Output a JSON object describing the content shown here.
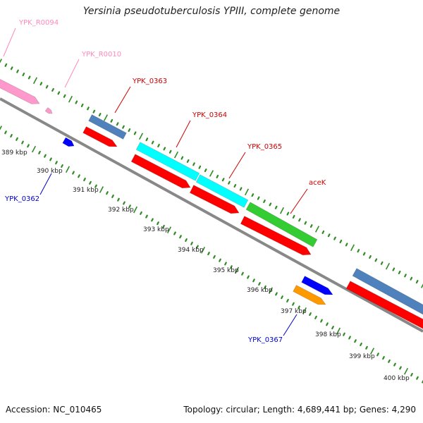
{
  "title": "Yersinia pseudotuberculosis YPIII, complete genome",
  "footer": {
    "accession": "Accession: NC_010465",
    "stats": "Topology: circular; Length: 4,689,441 bp; Genes: 4,290"
  },
  "colors": {
    "backbone": "#888888",
    "tick": "#2e8b22",
    "cds_forward": "#ff0000",
    "rna": "#ff99cc",
    "blue_gene": "#0000ff",
    "steelblue_gene": "#4f81bd",
    "cyan_gene": "#00ffff",
    "green_gene": "#33cc33",
    "orange_gene": "#ff9900",
    "label_red": "#cc0000",
    "label_pink": "#ff88bb",
    "label_blue": "#0000cc",
    "kbp_label": "#222222"
  },
  "scale_labels": [
    "389 kbp",
    "390 kbp",
    "391 kbp",
    "392 kbp",
    "393 kbp",
    "394 kbp",
    "395 kbp",
    "396 kbp",
    "397 kbp",
    "398 kbp",
    "399 kbp",
    "400 kbp"
  ],
  "gene_labels": [
    {
      "text": "YPK_R0094",
      "color": "label_pink"
    },
    {
      "text": "YPK_R0010",
      "color": "label_pink"
    },
    {
      "text": "YPK_0363",
      "color": "label_red"
    },
    {
      "text": "YPK_0364",
      "color": "label_red"
    },
    {
      "text": "YPK_0365",
      "color": "label_red"
    },
    {
      "text": "aceK",
      "color": "label_red"
    },
    {
      "text": "YPK_0362",
      "color": "label_blue"
    },
    {
      "text": "YPK_0367",
      "color": "label_blue"
    }
  ]
}
